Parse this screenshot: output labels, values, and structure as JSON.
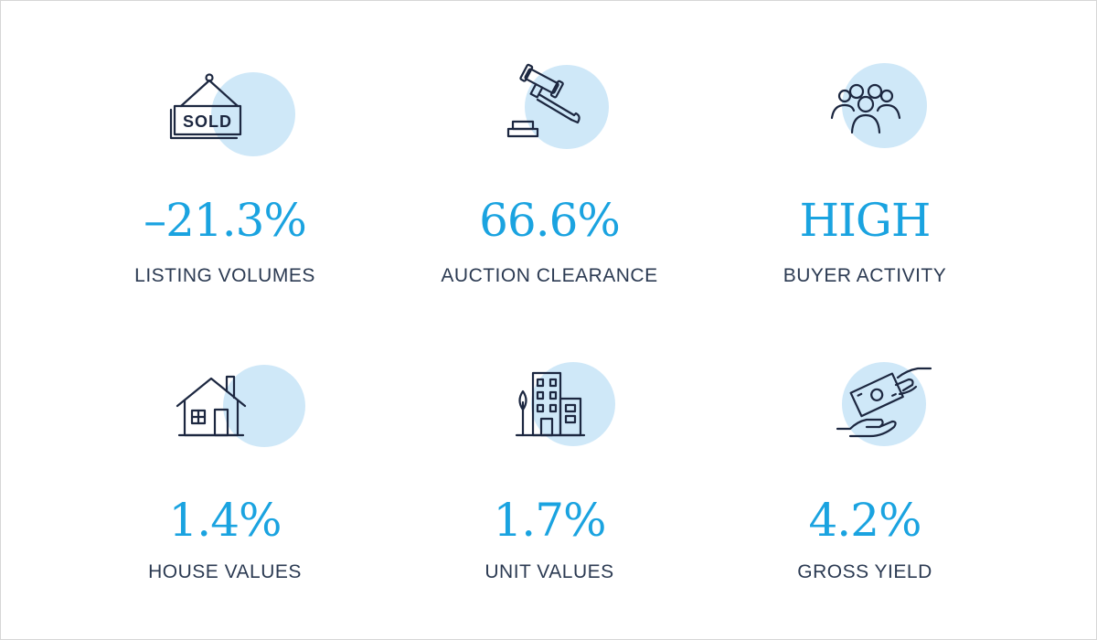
{
  "colors": {
    "accent": "#1aa3e0",
    "label": "#2b3a52",
    "icon_stroke": "#1c2740",
    "icon_circle": "#cfe8f8"
  },
  "stats": [
    {
      "icon": "sold-sign-icon",
      "value": "–21.3%",
      "label": "LISTING VOLUMES",
      "icon_text": "SOLD"
    },
    {
      "icon": "auction-gavel-icon",
      "value": "66.6%",
      "label": "AUCTION CLEARANCE"
    },
    {
      "icon": "buyer-group-icon",
      "value": "HIGH",
      "label": "BUYER ACTIVITY"
    },
    {
      "icon": "house-icon",
      "value": "1.4%",
      "label": "HOUSE VALUES"
    },
    {
      "icon": "apartment-building-icon",
      "value": "1.7%",
      "label": "UNIT VALUES"
    },
    {
      "icon": "money-hand-icon",
      "value": "4.2%",
      "label": "GROSS YIELD"
    }
  ]
}
